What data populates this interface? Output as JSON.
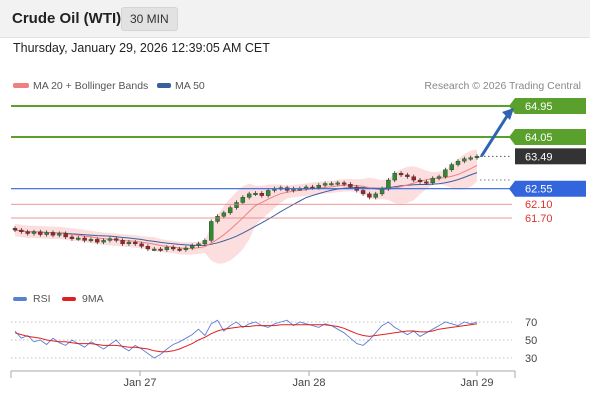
{
  "header": {
    "instrument": "Crude Oil (WTI)",
    "timeframe": "30 MIN",
    "datetime": "Thursday, January 29, 2026 12:39:05 AM CET"
  },
  "legend": {
    "ma20": "MA 20 + Bollinger Bands",
    "ma50": "MA 50",
    "credit": "Research © 2026 Trading Central",
    "rsi": "RSI",
    "ma9": "9MA"
  },
  "colors": {
    "ma20": "#f08080",
    "ma50": "#3a5fa0",
    "band": "#fbd3d3",
    "resistance": "#5aa02c",
    "pivot": "#3366dd",
    "support": "#e87474",
    "last": "#333333",
    "up": "#2e8b2e",
    "down": "#a52020",
    "arrow": "#2f64b4",
    "rsi": "#5b7fd6",
    "rsi_ma": "#e02020"
  },
  "chart_data": {
    "type": "candlestick",
    "x_ticks": [
      "Jan 27",
      "Jan 28",
      "Jan 29"
    ],
    "levels": [
      {
        "label": "64.95",
        "value": 64.95,
        "kind": "resistance"
      },
      {
        "label": "64.05",
        "value": 64.05,
        "kind": "resistance"
      },
      {
        "label": "63.49",
        "value": 63.49,
        "kind": "last"
      },
      {
        "label": "62.55",
        "value": 62.55,
        "kind": "pivot"
      },
      {
        "label": "62.10",
        "value": 62.1,
        "kind": "support"
      },
      {
        "label": "61.70",
        "value": 61.7,
        "kind": "support"
      }
    ],
    "price_path": [
      61.35,
      61.3,
      61.25,
      61.3,
      61.22,
      61.28,
      61.2,
      61.25,
      61.15,
      61.1,
      61.12,
      61.05,
      61.08,
      61.0,
      61.05,
      61.1,
      61.05,
      60.95,
      61.0,
      60.95,
      60.88,
      60.8,
      60.8,
      60.78,
      60.85,
      60.8,
      60.78,
      60.83,
      60.9,
      60.95,
      61.05,
      61.6,
      61.75,
      61.85,
      62.0,
      62.15,
      62.3,
      62.4,
      62.42,
      62.35,
      62.5,
      62.55,
      62.58,
      62.5,
      62.55,
      62.55,
      62.6,
      62.58,
      62.65,
      62.7,
      62.7,
      62.72,
      62.68,
      62.6,
      62.5,
      62.4,
      62.3,
      62.4,
      62.55,
      62.8,
      63.0,
      62.95,
      62.9,
      62.8,
      62.75,
      62.72,
      62.85,
      62.9,
      63.1,
      63.25,
      63.35,
      63.42,
      63.45,
      63.49
    ],
    "forecast": {
      "from": 63.49,
      "to": 64.95
    },
    "rsi": {
      "ticks": [
        70,
        50,
        30
      ],
      "values": [
        60,
        52,
        55,
        48,
        50,
        45,
        52,
        47,
        44,
        50,
        46,
        42,
        48,
        44,
        40,
        45,
        50,
        42,
        38,
        44,
        40,
        35,
        30,
        34,
        40,
        45,
        48,
        52,
        56,
        62,
        55,
        68,
        72,
        60,
        66,
        70,
        64,
        68,
        70,
        66,
        64,
        68,
        70,
        72,
        66,
        70,
        68,
        66,
        64,
        68,
        66,
        62,
        58,
        52,
        46,
        44,
        50,
        58,
        66,
        70,
        64,
        60,
        56,
        60,
        54,
        58,
        62,
        66,
        70,
        68,
        66,
        70,
        68,
        70
      ],
      "ma9": [
        58,
        56,
        54,
        53,
        52,
        50,
        49,
        48,
        48,
        47,
        46,
        46,
        46,
        45,
        44,
        44,
        44,
        43,
        42,
        42,
        41,
        40,
        38,
        37,
        37,
        38,
        40,
        43,
        46,
        50,
        53,
        57,
        60,
        62,
        63,
        64,
        65,
        65,
        66,
        66,
        66,
        66,
        67,
        67,
        67,
        67,
        67,
        67,
        67,
        67,
        66,
        65,
        63,
        60,
        57,
        55,
        54,
        55,
        56,
        57,
        58,
        59,
        60,
        60,
        59,
        59,
        60,
        62,
        63,
        64,
        65,
        66,
        67,
        68
      ]
    }
  }
}
